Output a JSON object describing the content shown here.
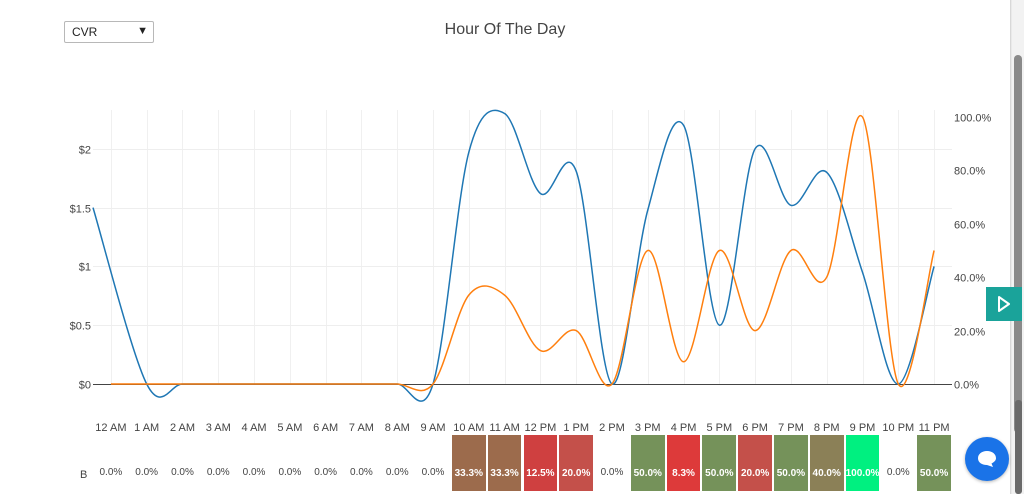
{
  "controls": {
    "metric_select": {
      "selected": "CVR",
      "arrow": "▼"
    }
  },
  "icons": {
    "play": "play-triangle-icon",
    "chat": "chat-bubble-icon"
  },
  "chart_data": {
    "type": "line",
    "title": "Hour Of The Day",
    "categories": [
      "12 AM",
      "1 AM",
      "2 AM",
      "3 AM",
      "4 AM",
      "5 AM",
      "6 AM",
      "7 AM",
      "8 AM",
      "9 AM",
      "10 AM",
      "11 AM",
      "12 PM",
      "1 PM",
      "2 PM",
      "3 PM",
      "4 PM",
      "5 PM",
      "6 PM",
      "7 PM",
      "8 PM",
      "9 PM",
      "10 PM",
      "11 PM"
    ],
    "y_left": {
      "ticks": [
        "$0",
        "$0.5",
        "$1",
        "$1.5",
        "$2"
      ],
      "range": [
        0,
        2.33
      ]
    },
    "y_right": {
      "ticks": [
        "0.0%",
        "20.0%",
        "40.0%",
        "60.0%",
        "80.0%",
        "100.0%"
      ],
      "range": [
        0,
        100
      ]
    },
    "series": [
      {
        "color": "#1f77b4",
        "axis": "left",
        "values": [
          1.5,
          0,
          0,
          0,
          0,
          0,
          0,
          0,
          0,
          0,
          1.97,
          2.3,
          1.62,
          1.81,
          0,
          1.48,
          2.2,
          0.5,
          2.0,
          1.52,
          1.8,
          0.95,
          0,
          1.0
        ]
      },
      {
        "color": "#ff7f0e",
        "axis": "right",
        "values": [
          0,
          0,
          0,
          0,
          0,
          0,
          0,
          0,
          0,
          0,
          33.3,
          33.3,
          12.5,
          20.0,
          0,
          50.0,
          8.3,
          50.0,
          20.0,
          50.0,
          40.0,
          100.0,
          0,
          50.0
        ]
      }
    ],
    "grid": true,
    "heatmap": {
      "row_label": "B",
      "values": [
        "0.0%",
        "0.0%",
        "0.0%",
        "0.0%",
        "0.0%",
        "0.0%",
        "0.0%",
        "0.0%",
        "0.0%",
        "0.0%",
        "33.3%",
        "33.3%",
        "12.5%",
        "20.0%",
        "0.0%",
        "50.0%",
        "8.3%",
        "50.0%",
        "20.0%",
        "50.0%",
        "40.0%",
        "100.0%",
        "0.0%",
        "50.0%"
      ],
      "colors": [
        "",
        "",
        "",
        "",
        "",
        "",
        "",
        "",
        "",
        "",
        "#9c6b4c",
        "#9c6b4c",
        "#cf4040",
        "#c4504a",
        "",
        "#75925a",
        "#dd3a3a",
        "#75925a",
        "#c4504a",
        "#75925a",
        "#8b8057",
        "#00f080",
        "",
        "#75925a"
      ]
    }
  }
}
